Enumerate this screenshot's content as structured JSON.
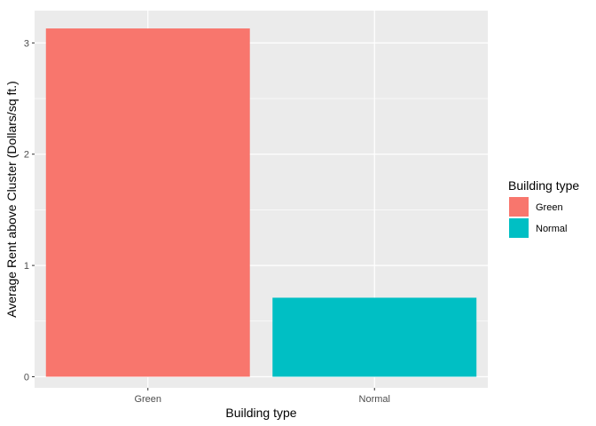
{
  "chart_data": {
    "type": "bar",
    "categories": [
      "Green",
      "Normal"
    ],
    "values": [
      3.13,
      0.71
    ],
    "colors": [
      "#F8766D",
      "#00BFC4"
    ],
    "xlabel": "Building type",
    "ylabel": "Average Rent above Cluster (Dollars/sq ft.)",
    "ylim": [
      -0.1,
      3.29
    ],
    "yticks": [
      0,
      1,
      2,
      3
    ],
    "grid": true,
    "panel_background": "#EBEBEB",
    "legend": {
      "title": "Building type",
      "position": "right",
      "entries": [
        "Green",
        "Normal"
      ]
    }
  }
}
